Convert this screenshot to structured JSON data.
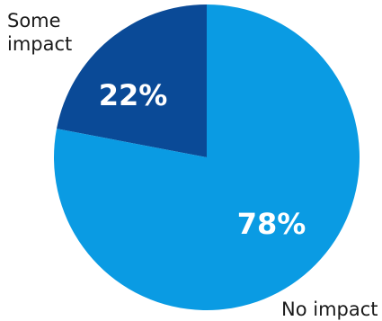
{
  "chart_data": {
    "type": "pie",
    "title": "",
    "slices": [
      {
        "label": "Some impact",
        "value": 22,
        "value_label": "22%",
        "color": "#0a4a97"
      },
      {
        "label": "No impact",
        "value": 78,
        "value_label": "78%",
        "color": "#0a9be3"
      }
    ]
  }
}
